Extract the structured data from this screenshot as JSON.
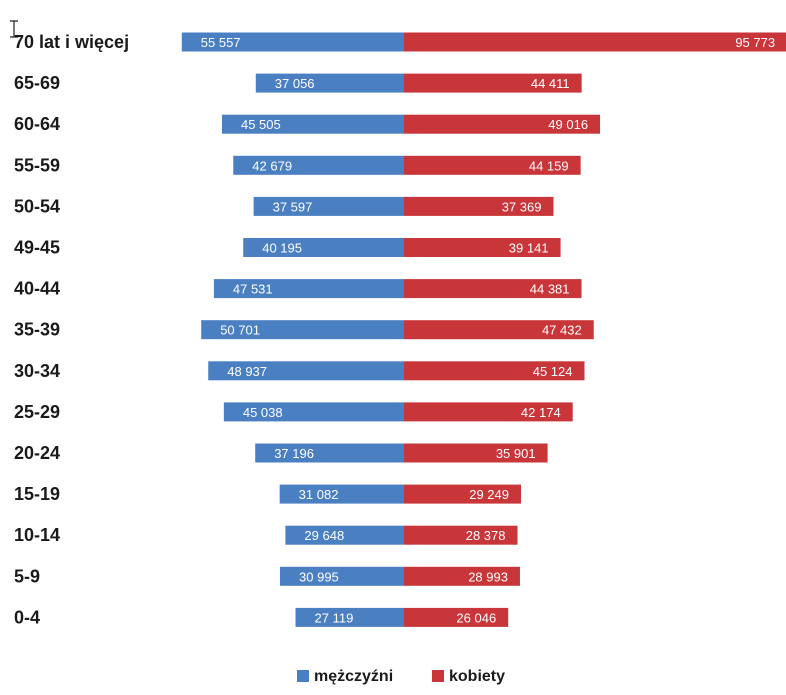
{
  "chart_data": {
    "type": "bar",
    "orientation": "horizontal-diverging",
    "categories": [
      "70 lat i więcej",
      "65-69",
      "60-64",
      "55-59",
      "50-54",
      "49-45",
      "40-44",
      "35-39",
      "30-34",
      "25-29",
      "20-24",
      "15-19",
      "10-14",
      "5-9",
      "0-4"
    ],
    "series": [
      {
        "name": "mężczyźni",
        "color": "#4a7fc1",
        "values": [
          55557,
          37056,
          45505,
          42679,
          37597,
          40195,
          47531,
          50701,
          48937,
          45038,
          37196,
          31082,
          29648,
          30995,
          27119
        ],
        "labels": [
          "55 557",
          "37 056",
          "45 505",
          "42 679",
          "37 597",
          "40 195",
          "47 531",
          "50 701",
          "48 937",
          "45 038",
          "37 196",
          "31 082",
          "29 648",
          "30 995",
          "27 119"
        ]
      },
      {
        "name": "kobiety",
        "color": "#c8363a",
        "values": [
          95773,
          44411,
          49016,
          44159,
          37369,
          39141,
          44381,
          47432,
          45124,
          42174,
          35901,
          29249,
          28378,
          28993,
          26046
        ],
        "labels": [
          "95 773",
          "44 411",
          "49 016",
          "44 159",
          "37 369",
          "39 141",
          "44 381",
          "47 432",
          "45 124",
          "42 174",
          "35 901",
          "29 249",
          "28 378",
          "28 993",
          "26 046"
        ]
      }
    ],
    "title": "",
    "xlabel": "",
    "ylabel": "",
    "grid": false,
    "legend_position": "bottom"
  }
}
